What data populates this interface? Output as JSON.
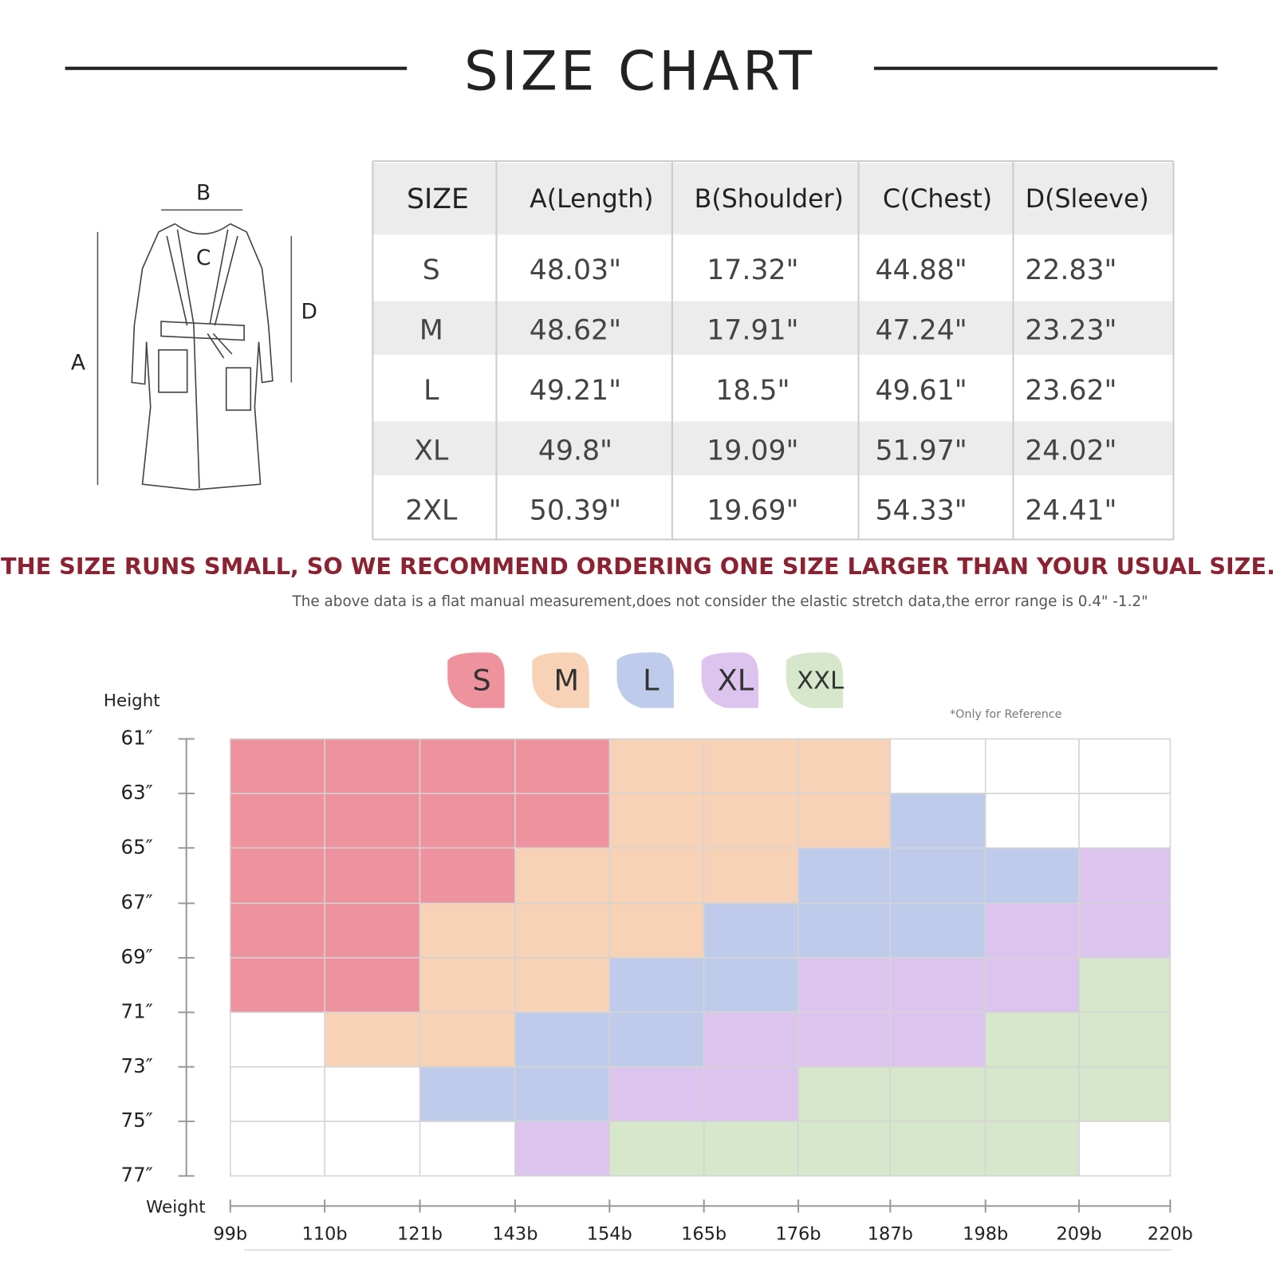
{
  "header": {
    "title": "SIZE CHART"
  },
  "diagram": {
    "labels": [
      "A",
      "B",
      "C",
      "D"
    ]
  },
  "table": {
    "columns": [
      "SIZE",
      "A(Length)",
      "B(Shoulder)",
      "C(Chest)",
      "D(Sleeve)"
    ],
    "rows": [
      [
        "S",
        "48.03\"",
        "17.32\"",
        "44.88\"",
        "22.83\""
      ],
      [
        "M",
        "48.62\"",
        "17.91\"",
        "47.24\"",
        "23.23\""
      ],
      [
        "L",
        "49.21\"",
        "18.5\"",
        "49.61\"",
        "23.62\""
      ],
      [
        "XL",
        "49.8\"",
        "19.09\"",
        "51.97\"",
        "24.02\""
      ],
      [
        "2XL",
        "50.39\"",
        "19.69\"",
        "54.33\"",
        "24.41\""
      ]
    ]
  },
  "warning": "THE SIZE RUNS SMALL, SO WE RECOMMEND ORDERING ONE SIZE LARGER THAN YOUR USUAL SIZE.",
  "note": "The above data is a flat manual measurement,does not consider the elastic stretch data,the error range is 0.4\" -1.2\"",
  "size_grid": {
    "legend": [
      {
        "label": "S",
        "color": "#ee929e"
      },
      {
        "label": "M",
        "color": "#f8d2b6"
      },
      {
        "label": "L",
        "color": "#bfcbea"
      },
      {
        "label": "XL",
        "color": "#dcc4ef"
      },
      {
        "label": "XXL",
        "color": "#d6e7cb"
      }
    ],
    "reference": "*Only for Reference",
    "height_label": "Height",
    "weight_label": "Weight",
    "heights": [
      "61″",
      "63″",
      "65″",
      "67″",
      "69″",
      "71″",
      "73″",
      "75″",
      "77″"
    ],
    "weights": [
      "99b",
      "110b",
      "121b",
      "143b",
      "154b",
      "165b",
      "176b",
      "187b",
      "198b",
      "209b",
      "220b"
    ],
    "rows": [
      [
        0,
        0,
        0,
        0,
        1,
        1,
        1,
        null,
        null,
        null
      ],
      [
        0,
        0,
        0,
        0,
        1,
        1,
        1,
        2,
        null,
        null
      ],
      [
        0,
        0,
        0,
        1,
        1,
        1,
        2,
        2,
        2,
        3
      ],
      [
        0,
        0,
        1,
        1,
        1,
        2,
        2,
        2,
        3,
        3
      ],
      [
        0,
        0,
        1,
        1,
        2,
        2,
        3,
        3,
        3,
        4
      ],
      [
        null,
        1,
        1,
        2,
        2,
        3,
        3,
        3,
        4,
        4
      ],
      [
        null,
        null,
        2,
        2,
        3,
        3,
        4,
        4,
        4,
        4
      ],
      [
        null,
        null,
        null,
        3,
        4,
        4,
        4,
        4,
        4,
        null
      ]
    ]
  }
}
